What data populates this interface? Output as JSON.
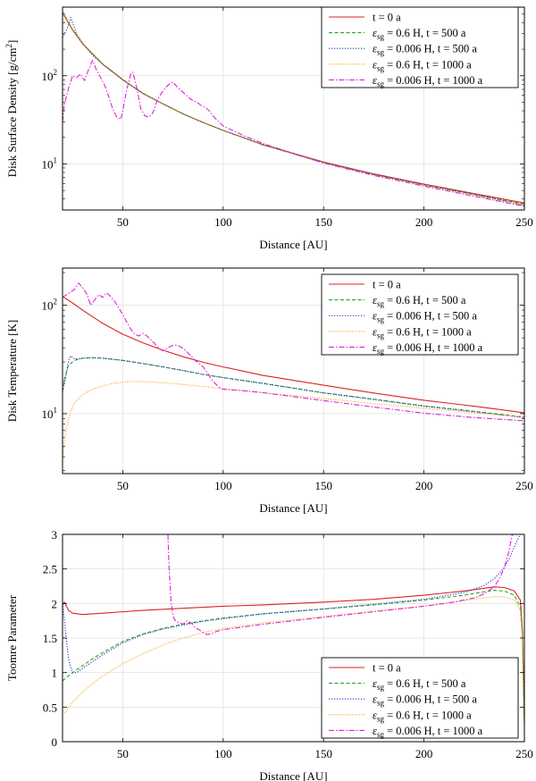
{
  "colors": {
    "t0": "#dd2222",
    "sg06_500": "#22aa22",
    "sg0006_500": "#3333cc",
    "sg06_1000": "#ff9900",
    "sg0006_1000": "#dd22dd",
    "grid": "#e2e2e2",
    "axis": "#000000"
  },
  "chart_data": [
    {
      "type": "line",
      "yscale": "log",
      "xlabel": "Distance [AU]",
      "ylabel": "Disk Surface Density [g/cm²]",
      "xlim": [
        20,
        250
      ],
      "ylim": [
        3,
        600
      ],
      "x_ticks": [
        50,
        100,
        150,
        200,
        250
      ],
      "y_ticks": [
        10,
        100
      ],
      "y_tick_labels": [
        "10¹",
        "10²"
      ],
      "legend_position": "top-right",
      "series": [
        {
          "key": "t0",
          "name": "t = 0 a",
          "legend_prefix": "",
          "legend_rest": "t = 0 a",
          "x": [
            20,
            25,
            30,
            40,
            50,
            60,
            70,
            80,
            90,
            100,
            120,
            150,
            175,
            200,
            225,
            250
          ],
          "y": [
            520,
            330,
            230,
            135,
            90,
            63,
            48,
            37,
            29.5,
            24,
            16.5,
            10.5,
            7.7,
            5.9,
            4.6,
            3.6
          ]
        },
        {
          "key": "sg06_500",
          "name": "εsg = 0.6 H, t = 500 a",
          "legend_prefix": "ε",
          "legend_sub": "sg",
          "legend_rest": " = 0.6 H, t = 500 a",
          "x": [
            20,
            25,
            30,
            40,
            50,
            60,
            70,
            80,
            90,
            100,
            120,
            150,
            175,
            200,
            225,
            250
          ],
          "y": [
            530,
            335,
            232,
            136,
            91,
            63.5,
            48,
            37,
            29.5,
            24,
            16.4,
            10.4,
            7.6,
            5.8,
            4.5,
            3.5
          ]
        },
        {
          "key": "sg0006_500",
          "name": "εsg = 0.006 H, t = 500 a",
          "legend_prefix": "ε",
          "legend_sub": "sg",
          "legend_rest": " = 0.006 H, t = 500 a",
          "x": [
            20,
            21,
            22,
            23,
            24,
            25,
            27,
            30,
            35,
            40,
            50,
            60,
            70,
            80,
            90,
            100,
            120,
            150,
            175,
            200,
            225,
            250
          ],
          "y": [
            270,
            300,
            330,
            380,
            460,
            400,
            300,
            235,
            170,
            135,
            90,
            63,
            48,
            37,
            29.5,
            24,
            16.4,
            10.3,
            7.6,
            5.8,
            4.5,
            3.4
          ]
        },
        {
          "key": "sg06_1000",
          "name": "εsg = 0.6 H, t = 1000 a",
          "legend_prefix": "ε",
          "legend_sub": "sg",
          "legend_rest": " = 0.6 H, t = 1000 a",
          "x": [
            20,
            25,
            30,
            40,
            50,
            60,
            70,
            80,
            90,
            100,
            120,
            150,
            175,
            200,
            225,
            250
          ],
          "y": [
            540,
            338,
            233,
            137,
            91,
            63,
            48,
            37,
            29.5,
            24,
            16.3,
            10.3,
            7.5,
            5.7,
            4.4,
            3.4
          ]
        },
        {
          "key": "sg0006_1000",
          "name": "εsg = 0.006 H, t = 1000 a",
          "legend_prefix": "ε",
          "legend_sub": "sg",
          "legend_rest": " = 0.006 H, t = 1000 a",
          "x": [
            20,
            21,
            23,
            25,
            27,
            29,
            31,
            33,
            35,
            37,
            39,
            41,
            43,
            45,
            47,
            49,
            50,
            52,
            54,
            55,
            57,
            59,
            61,
            63,
            65,
            67,
            69,
            71,
            73,
            75,
            77,
            79,
            81,
            83,
            85,
            87,
            89,
            91,
            93,
            96,
            100,
            110,
            120,
            150,
            175,
            200,
            225,
            250
          ],
          "y": [
            30,
            48,
            72,
            100,
            95,
            105,
            88,
            118,
            150,
            115,
            95,
            78,
            58,
            42,
            34,
            32,
            40,
            70,
            105,
            110,
            72,
            42,
            35,
            34,
            38,
            52,
            62,
            72,
            80,
            85,
            75,
            68,
            62,
            56,
            52,
            50,
            46,
            44,
            40,
            33,
            27,
            21,
            17,
            10.2,
            7.4,
            5.6,
            4.3,
            3.3
          ]
        }
      ]
    },
    {
      "type": "line",
      "yscale": "log",
      "xlabel": "Distance [AU]",
      "ylabel": "Disk Temperature [K]",
      "xlim": [
        20,
        250
      ],
      "ylim": [
        2.8,
        220
      ],
      "x_ticks": [
        50,
        100,
        150,
        200,
        250
      ],
      "y_ticks": [
        10,
        100
      ],
      "y_tick_labels": [
        "10¹",
        "10²"
      ],
      "legend_position": "top-right",
      "series": [
        {
          "key": "t0",
          "name": "t = 0 a",
          "legend_prefix": "",
          "legend_rest": "t = 0 a",
          "x": [
            20,
            25,
            30,
            40,
            50,
            60,
            70,
            80,
            90,
            100,
            120,
            150,
            175,
            200,
            225,
            250
          ],
          "y": [
            120,
            105,
            90,
            68,
            54,
            45,
            38.5,
            33.5,
            29.8,
            27,
            22.5,
            18.3,
            15.5,
            13.3,
            11.7,
            10.2
          ]
        },
        {
          "key": "sg06_500",
          "name": "εsg = 0.6 H, t = 500 a",
          "legend_prefix": "ε",
          "legend_sub": "sg",
          "legend_rest": " = 0.6 H, t = 500 a",
          "x": [
            20,
            21,
            23,
            26,
            30,
            35,
            40,
            50,
            60,
            70,
            80,
            90,
            100,
            120,
            150,
            175,
            200,
            225,
            250
          ],
          "y": [
            16,
            21,
            28,
            31,
            32.5,
            32.8,
            32.5,
            31,
            29,
            27,
            25,
            23,
            21.5,
            19,
            15.6,
            13.6,
            11.8,
            10.5,
            9.3
          ]
        },
        {
          "key": "sg0006_500",
          "name": "εsg = 0.006 H, t = 500 a",
          "legend_prefix": "ε",
          "legend_sub": "sg",
          "legend_rest": " = 0.006 H, t = 500 a",
          "x": [
            20,
            21,
            22,
            23,
            24,
            25,
            26,
            28,
            30,
            35,
            40,
            50,
            60,
            70,
            80,
            90,
            100,
            120,
            150,
            175,
            200,
            225,
            250
          ],
          "y": [
            16,
            19,
            24,
            31,
            34,
            33,
            32,
            32,
            32.5,
            32.8,
            32.5,
            31,
            29,
            27,
            25,
            23,
            21.5,
            19,
            15.5,
            13.5,
            11.7,
            10.4,
            9.2
          ]
        },
        {
          "key": "sg06_1000",
          "name": "εsg = 0.6 H, t = 1000 a",
          "legend_prefix": "ε",
          "legend_sub": "sg",
          "legend_rest": " = 0.6 H, t = 1000 a",
          "x": [
            20,
            21,
            22,
            24,
            26,
            30,
            35,
            40,
            45,
            50,
            55,
            60,
            70,
            80,
            90,
            100,
            120,
            150,
            175,
            200,
            225,
            250
          ],
          "y": [
            3.8,
            5.5,
            7.5,
            10.5,
            12.5,
            15,
            16.8,
            18,
            19,
            19.5,
            19.8,
            19.8,
            19.3,
            18.6,
            17.8,
            17,
            15.6,
            13.8,
            12.4,
            11.2,
            10.2,
            9.3
          ]
        },
        {
          "key": "sg0006_1000",
          "name": "εsg = 0.006 H, t = 1000 a",
          "legend_prefix": "ε",
          "legend_sub": "sg",
          "legend_rest": " = 0.006 H, t = 1000 a",
          "x": [
            20,
            22,
            24,
            26,
            28,
            30,
            32,
            34,
            36,
            38,
            40,
            42,
            44,
            46,
            48,
            50,
            52,
            54,
            56,
            58,
            60,
            62,
            64,
            66,
            68,
            70,
            72,
            74,
            76,
            78,
            80,
            82,
            84,
            86,
            88,
            90,
            92,
            94,
            96,
            98,
            100,
            105,
            110,
            120,
            150,
            175,
            200,
            225,
            250
          ],
          "y": [
            118,
            125,
            132,
            140,
            160,
            145,
            128,
            100,
            112,
            125,
            118,
            130,
            120,
            108,
            95,
            82,
            70,
            60,
            54,
            52,
            55,
            52,
            48,
            44,
            40,
            38,
            40,
            42,
            43,
            42,
            40,
            37,
            34,
            31,
            29,
            27,
            24,
            21,
            19,
            17.5,
            16.8,
            16.5,
            16.3,
            15.6,
            13.2,
            11.5,
            10.1,
            9.2,
            8.6
          ]
        }
      ]
    },
    {
      "type": "line",
      "yscale": "linear",
      "xlabel": "Distance [AU]",
      "ylabel": "Toomre Parameter",
      "xlim": [
        20,
        250
      ],
      "ylim": [
        0,
        3
      ],
      "x_ticks": [
        50,
        100,
        150,
        200,
        250
      ],
      "y_ticks": [
        0,
        0.5,
        1,
        1.5,
        2,
        2.5,
        3
      ],
      "y_tick_labels": [
        "0",
        "0.5",
        "1",
        "1.5",
        "2",
        "2.5",
        "3"
      ],
      "legend_position": "bottom-right",
      "series": [
        {
          "key": "t0",
          "name": "t = 0 a",
          "legend_prefix": "",
          "legend_rest": "t = 0 a",
          "x": [
            20,
            21,
            23,
            25,
            30,
            40,
            60,
            80,
            100,
            120,
            150,
            175,
            200,
            220,
            230,
            235,
            240,
            245,
            248,
            249,
            250
          ],
          "y": [
            1.98,
            2.02,
            1.9,
            1.86,
            1.84,
            1.86,
            1.9,
            1.93,
            1.96,
            1.98,
            2.02,
            2.06,
            2.12,
            2.18,
            2.22,
            2.24,
            2.23,
            2.18,
            2.05,
            1.6,
            0.25
          ]
        },
        {
          "key": "sg06_500",
          "name": "εsg = 0.6 H, t = 500 a",
          "legend_prefix": "ε",
          "legend_sub": "sg",
          "legend_rest": " = 0.6 H, t = 500 a",
          "x": [
            20,
            22,
            25,
            30,
            35,
            40,
            50,
            60,
            70,
            80,
            90,
            100,
            120,
            150,
            175,
            200,
            220,
            230,
            235,
            240,
            245,
            248,
            249,
            250
          ],
          "y": [
            0.88,
            0.93,
            1.0,
            1.1,
            1.2,
            1.29,
            1.45,
            1.56,
            1.64,
            1.7,
            1.75,
            1.79,
            1.85,
            1.92,
            1.98,
            2.05,
            2.12,
            2.17,
            2.19,
            2.18,
            2.12,
            1.95,
            1.55,
            0.3
          ]
        },
        {
          "key": "sg0006_500",
          "name": "εsg = 0.006 H, t = 500 a",
          "legend_prefix": "ε",
          "legend_sub": "sg",
          "legend_rest": " = 0.006 H, t = 500 a",
          "x": [
            20,
            21,
            22,
            23,
            24,
            25,
            27,
            30,
            35,
            40,
            50,
            60,
            70,
            80,
            90,
            100,
            120,
            150,
            175,
            200,
            220,
            230,
            235,
            240,
            243,
            245,
            247,
            248
          ],
          "y": [
            2.0,
            1.75,
            1.45,
            1.2,
            1.08,
            1.0,
            1.0,
            1.06,
            1.16,
            1.26,
            1.43,
            1.55,
            1.63,
            1.69,
            1.74,
            1.78,
            1.85,
            1.92,
            1.99,
            2.06,
            2.16,
            2.26,
            2.36,
            2.52,
            2.68,
            2.82,
            2.95,
            3.0
          ]
        },
        {
          "key": "sg06_1000",
          "name": "εsg = 0.6 H, t = 1000 a",
          "legend_prefix": "ε",
          "legend_sub": "sg",
          "legend_rest": " = 0.6 H, t = 1000 a",
          "x": [
            20,
            21,
            22,
            23,
            25,
            28,
            30,
            35,
            40,
            50,
            60,
            70,
            80,
            90,
            100,
            120,
            150,
            175,
            200,
            220,
            230,
            235,
            240,
            245,
            248,
            249,
            250
          ],
          "y": [
            0.45,
            0.42,
            0.44,
            0.5,
            0.57,
            0.66,
            0.72,
            0.84,
            0.95,
            1.13,
            1.27,
            1.4,
            1.5,
            1.58,
            1.64,
            1.72,
            1.81,
            1.89,
            1.96,
            2.04,
            2.08,
            2.1,
            2.1,
            2.05,
            1.9,
            1.5,
            0.3
          ]
        },
        {
          "key": "sg0006_1000",
          "name": "εsg = 0.006 H, t = 1000 a",
          "legend_prefix": "ε",
          "legend_sub": "sg",
          "legend_rest": " = 0.006 H, t = 1000 a",
          "x": [
            72.5,
            73,
            74,
            75,
            76,
            78,
            80,
            82,
            84,
            86,
            88,
            90,
            92,
            94,
            97,
            100,
            110,
            120,
            150,
            175,
            200,
            215,
            225,
            230,
            235,
            238,
            240,
            242,
            244
          ],
          "y": [
            3.0,
            2.55,
            2.05,
            1.82,
            1.76,
            1.72,
            1.7,
            1.75,
            1.72,
            1.65,
            1.62,
            1.58,
            1.55,
            1.56,
            1.6,
            1.62,
            1.66,
            1.7,
            1.8,
            1.88,
            1.96,
            2.02,
            2.08,
            2.14,
            2.24,
            2.38,
            2.52,
            2.72,
            3.0
          ]
        }
      ]
    }
  ]
}
